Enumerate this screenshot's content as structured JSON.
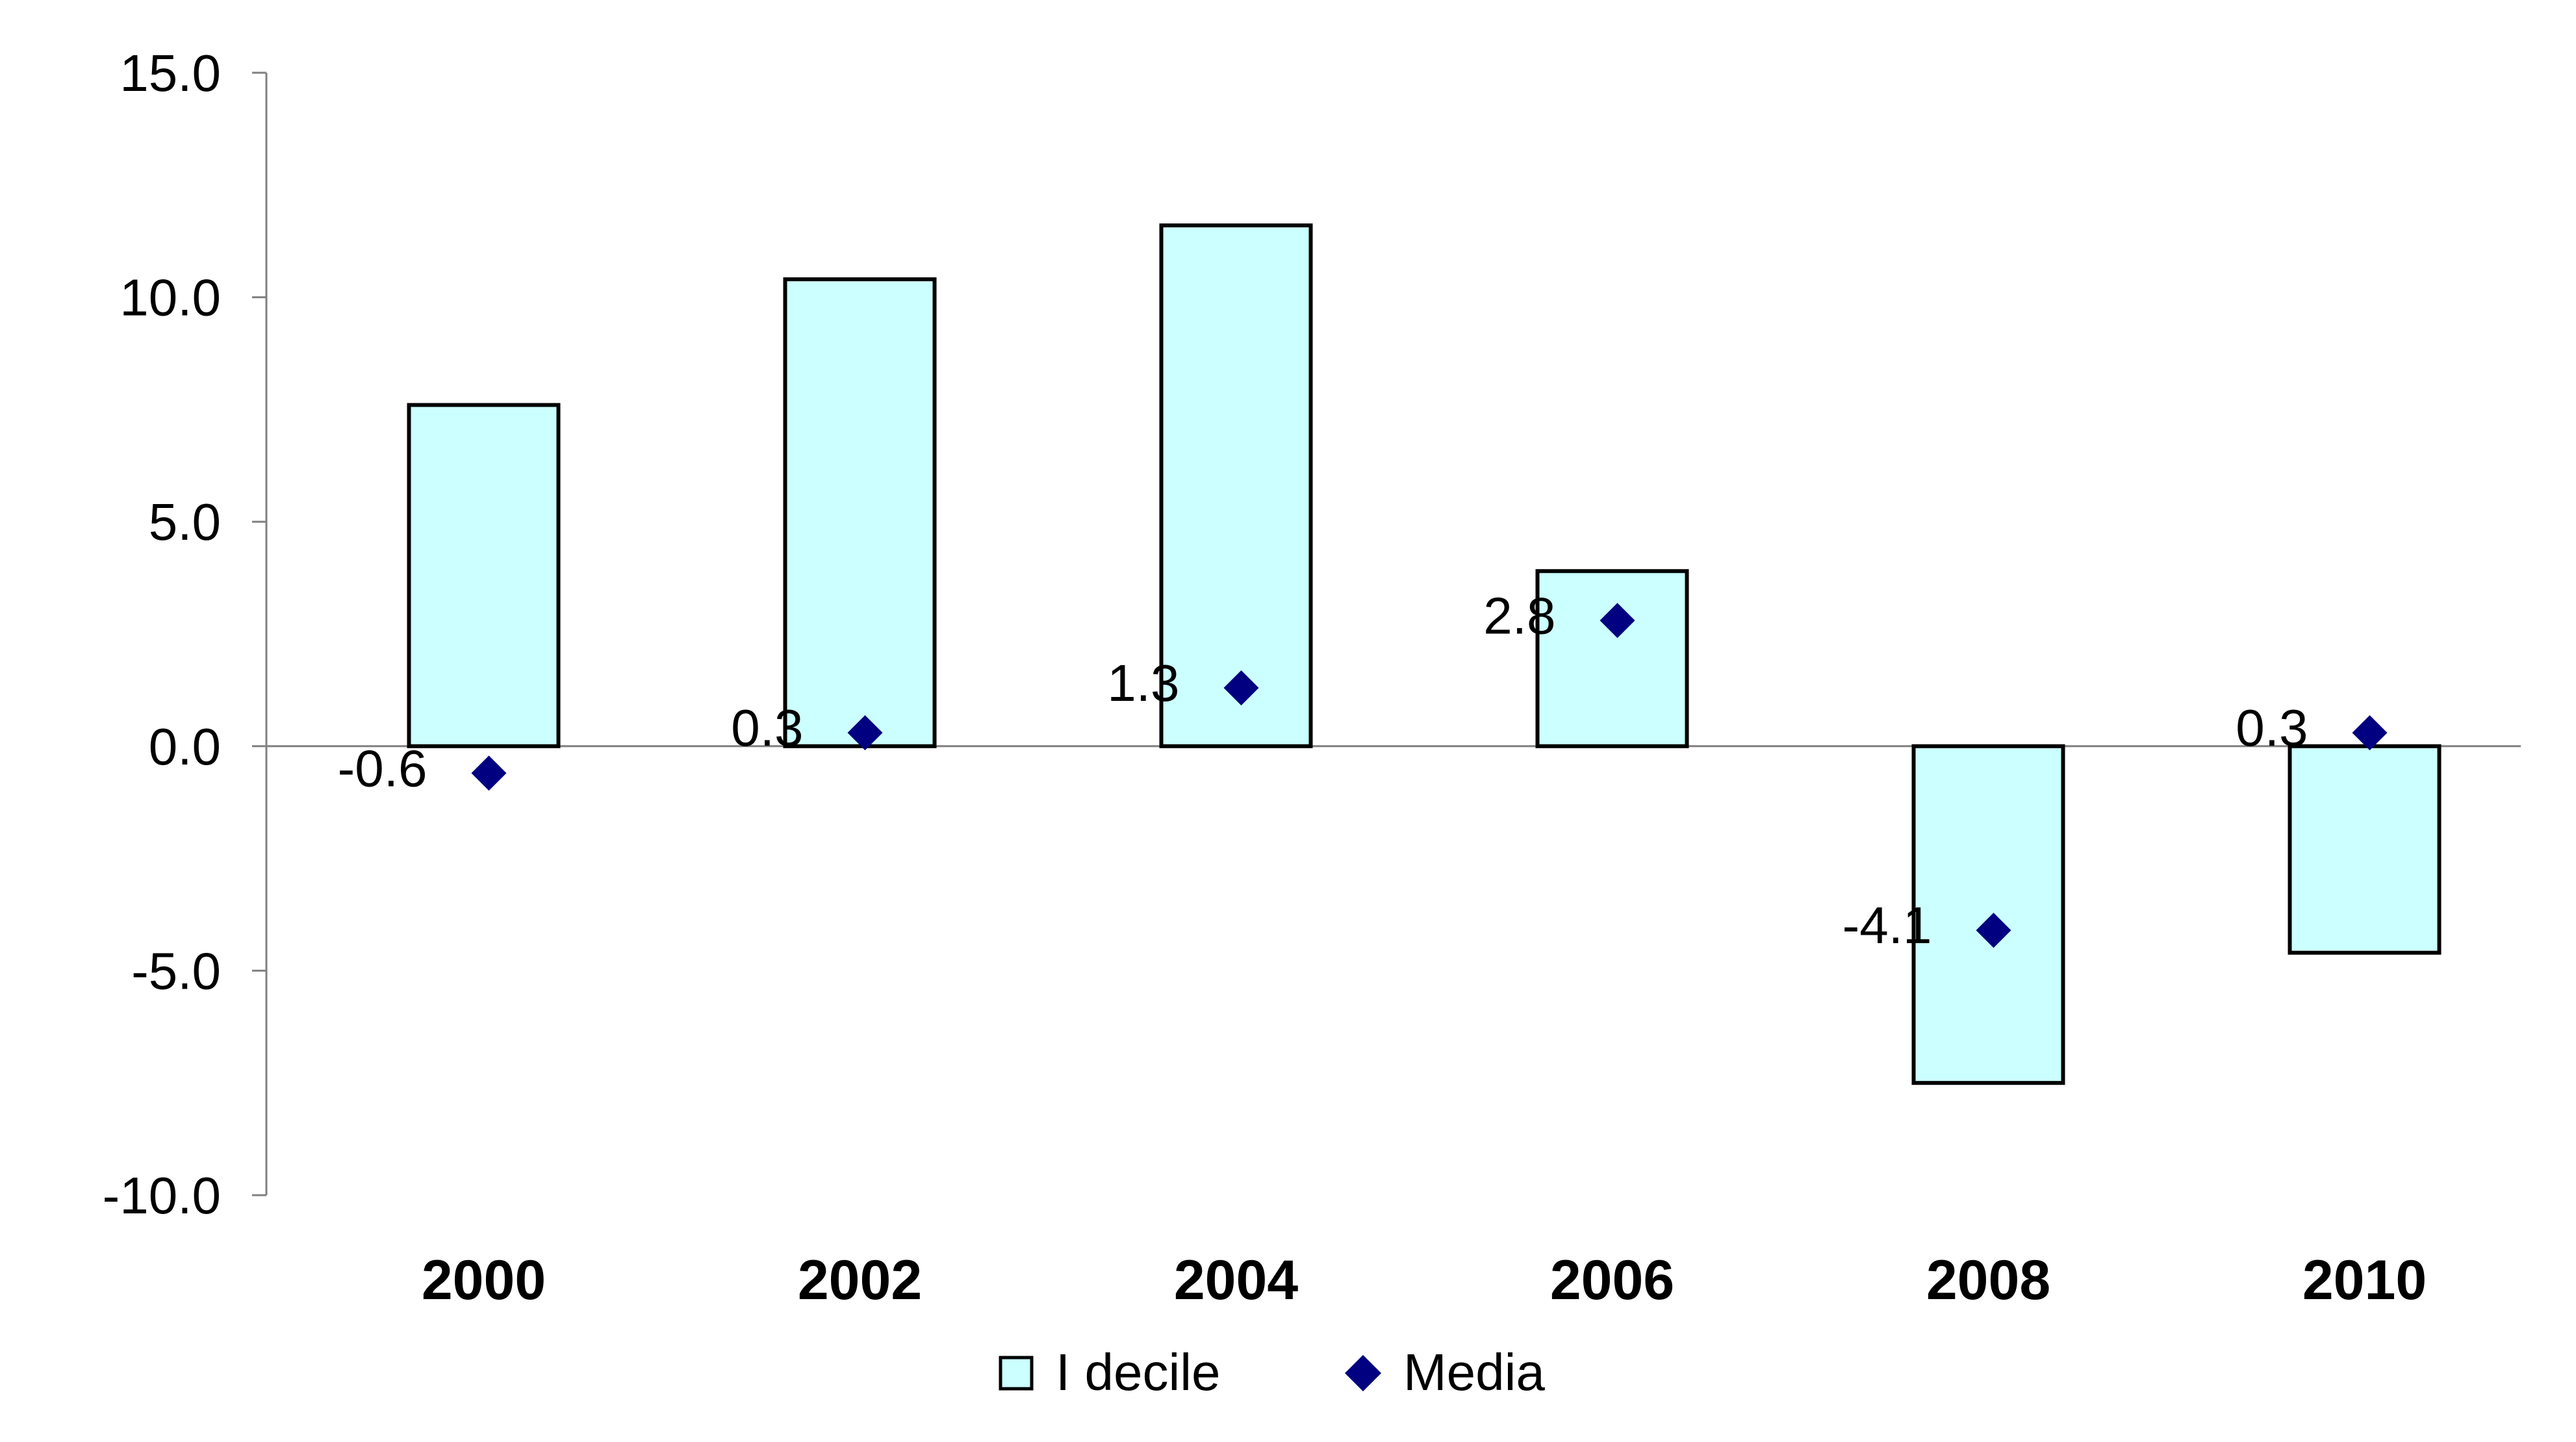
{
  "chart_data": {
    "type": "bar",
    "categories": [
      "2000",
      "2002",
      "2004",
      "2006",
      "2008",
      "2010"
    ],
    "series": [
      {
        "name": "I decile",
        "type": "bar",
        "values": [
          7.6,
          10.4,
          11.6,
          3.9,
          -7.5,
          -4.6
        ],
        "color": "#ccffff",
        "border": "#000000"
      },
      {
        "name": "Media",
        "type": "scatter",
        "values": [
          -0.6,
          0.3,
          1.3,
          2.8,
          -4.1,
          0.3
        ],
        "labels": [
          "-0.6",
          "0.3",
          "1.3",
          "2.8",
          "-4.1",
          "0.3"
        ],
        "color": "#000080"
      }
    ],
    "title": "",
    "xlabel": "",
    "ylabel": "",
    "ylim": [
      -10,
      15
    ],
    "yticks": [
      15,
      10,
      5,
      0,
      -5,
      -10
    ],
    "ytick_labels": [
      "15.0",
      "10.0",
      "5.0",
      "0.0",
      "-5.0",
      "-10.0"
    ],
    "grid": false,
    "legend_position": "bottom"
  }
}
